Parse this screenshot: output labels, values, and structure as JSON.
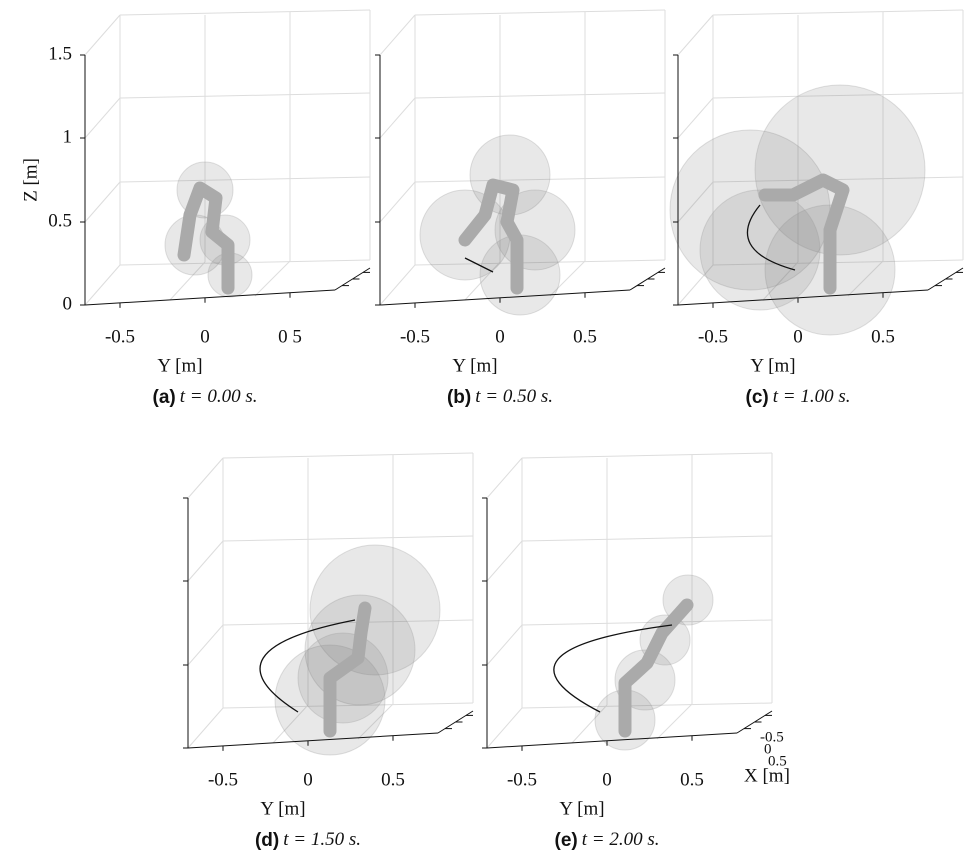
{
  "panels": [
    {
      "label": "(a)",
      "caption": "t = 0.00 s.",
      "z_axis_label": "Z [m]",
      "z_ticks": [
        "0",
        "0.5",
        "1",
        "1.5"
      ],
      "y_axis_label": "Y [m]",
      "y_ticks": [
        "-0.5",
        "0",
        "0 5"
      ]
    },
    {
      "label": "(b)",
      "caption": "t = 0.50 s.",
      "y_axis_label": "Y [m]",
      "y_ticks": [
        "-0.5",
        "0",
        "0.5"
      ]
    },
    {
      "label": "(c)",
      "caption": "t = 1.00 s.",
      "y_axis_label": "Y [m]",
      "y_ticks": [
        "-0.5",
        "0",
        "0.5"
      ]
    },
    {
      "label": "(d)",
      "caption": "t = 1.50 s.",
      "y_axis_label": "Y [m]",
      "y_ticks": [
        "-0.5",
        "0",
        "0.5"
      ]
    },
    {
      "label": "(e)",
      "caption": "t = 2.00 s.",
      "y_axis_label": "Y [m]",
      "y_ticks": [
        "-0.5",
        "0",
        "0.5"
      ],
      "x_axis_label": "X [m]",
      "x_ticks": [
        "-0.5",
        "0",
        "0.5"
      ]
    }
  ]
}
